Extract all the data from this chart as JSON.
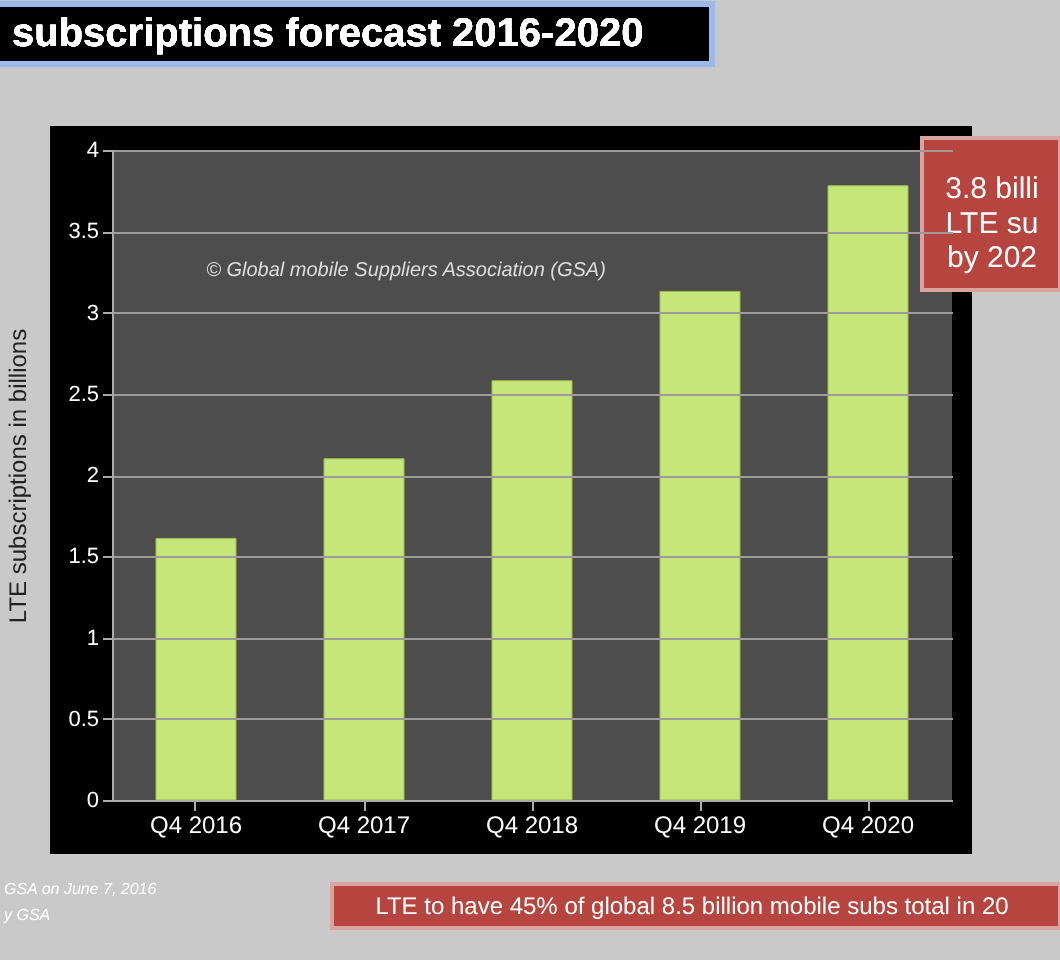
{
  "chart_data": {
    "type": "bar",
    "title": "subscriptions forecast 2016-2020",
    "ylabel": "LTE subscriptions in billions",
    "categories": [
      "Q4 2016",
      "Q4 2017",
      "Q4 2018",
      "Q4 2019",
      "Q4 2020"
    ],
    "values": [
      1.61,
      2.1,
      2.58,
      3.13,
      3.78
    ],
    "color": "#c6e67a",
    "ylim": [
      0,
      4
    ],
    "yticks": [
      0,
      0.5,
      1,
      1.5,
      2,
      2.5,
      3,
      3.5,
      4
    ],
    "grid": "y",
    "annotations": [
      "© Global mobile Suppliers Association (GSA)",
      "3.8 billi\nLTE su\nby 202",
      "LTE to have 45% of global 8.5 billion mobile subs total in 20",
      "GSA on June 7, 2016",
      "y GSA"
    ]
  }
}
